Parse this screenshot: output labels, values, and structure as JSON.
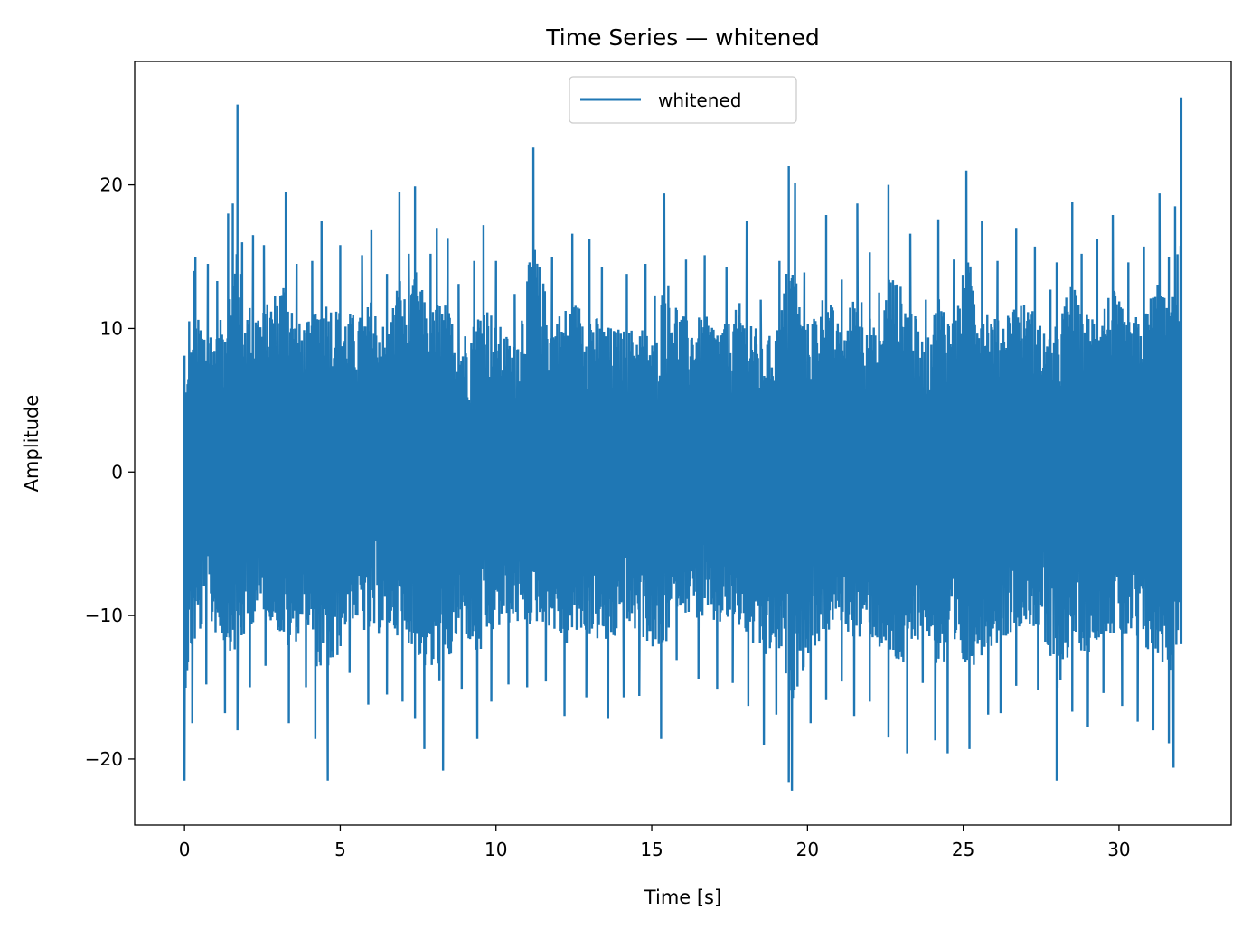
{
  "chart_data": {
    "type": "line",
    "title": "Time Series — whitened",
    "xlabel": "Time [s]",
    "ylabel": "Amplitude",
    "xlim": [
      -1.6,
      33.6
    ],
    "ylim": [
      -24.6,
      28.6
    ],
    "xticks": [
      0,
      5,
      10,
      15,
      20,
      25,
      30
    ],
    "xtick_labels": [
      "0",
      "5",
      "10",
      "15",
      "20",
      "25",
      "30"
    ],
    "yticks": [
      -20,
      -10,
      0,
      10,
      20
    ],
    "ytick_labels": [
      "−20",
      "−10",
      "0",
      "10",
      "20"
    ],
    "grid": false,
    "legend_position": "top-center",
    "series": [
      {
        "name": "whitened",
        "color": "#1f77b4",
        "x_start": 0,
        "x_end": 32,
        "peaks_max": [
          [
            0.0,
            8.1
          ],
          [
            0.15,
            10.5
          ],
          [
            0.3,
            14.0
          ],
          [
            0.35,
            15.0
          ],
          [
            0.75,
            14.5
          ],
          [
            1.05,
            13.3
          ],
          [
            1.4,
            18.0
          ],
          [
            1.55,
            18.7
          ],
          [
            1.7,
            25.6
          ],
          [
            1.85,
            16.0
          ],
          [
            2.2,
            16.5
          ],
          [
            2.55,
            15.8
          ],
          [
            3.25,
            19.5
          ],
          [
            3.6,
            14.5
          ],
          [
            4.1,
            14.7
          ],
          [
            4.4,
            17.5
          ],
          [
            5.0,
            15.8
          ],
          [
            5.7,
            15.1
          ],
          [
            6.0,
            16.9
          ],
          [
            6.5,
            13.8
          ],
          [
            6.9,
            19.5
          ],
          [
            7.2,
            15.2
          ],
          [
            7.4,
            19.9
          ],
          [
            7.9,
            15.2
          ],
          [
            8.1,
            17.0
          ],
          [
            8.45,
            16.3
          ],
          [
            8.8,
            13.1
          ],
          [
            9.3,
            14.7
          ],
          [
            9.6,
            17.2
          ],
          [
            10.0,
            14.7
          ],
          [
            10.6,
            12.4
          ],
          [
            11.2,
            22.6
          ],
          [
            11.8,
            15.0
          ],
          [
            12.45,
            16.6
          ],
          [
            13.0,
            16.2
          ],
          [
            13.4,
            14.3
          ],
          [
            14.2,
            13.8
          ],
          [
            14.8,
            14.5
          ],
          [
            15.1,
            12.3
          ],
          [
            15.4,
            19.4
          ],
          [
            16.1,
            14.8
          ],
          [
            16.7,
            15.1
          ],
          [
            17.4,
            14.3
          ],
          [
            18.05,
            17.5
          ],
          [
            18.5,
            12.0
          ],
          [
            19.1,
            14.7
          ],
          [
            19.4,
            21.3
          ],
          [
            19.6,
            20.1
          ],
          [
            19.9,
            13.9
          ],
          [
            20.6,
            17.9
          ],
          [
            21.1,
            13.4
          ],
          [
            21.6,
            18.7
          ],
          [
            22.0,
            15.3
          ],
          [
            22.3,
            12.5
          ],
          [
            22.6,
            20.0
          ],
          [
            23.3,
            16.6
          ],
          [
            23.8,
            12.0
          ],
          [
            24.2,
            17.6
          ],
          [
            24.7,
            14.8
          ],
          [
            25.1,
            21.0
          ],
          [
            25.6,
            17.5
          ],
          [
            26.1,
            14.7
          ],
          [
            26.7,
            17.0
          ],
          [
            27.3,
            15.7
          ],
          [
            27.8,
            12.7
          ],
          [
            28.0,
            14.6
          ],
          [
            28.5,
            18.8
          ],
          [
            28.8,
            15.2
          ],
          [
            29.3,
            16.2
          ],
          [
            29.8,
            17.9
          ],
          [
            30.3,
            14.6
          ],
          [
            30.8,
            15.7
          ],
          [
            31.3,
            19.4
          ],
          [
            31.6,
            15.0
          ],
          [
            31.8,
            18.5
          ],
          [
            32.0,
            26.1
          ]
        ],
        "peaks_min": [
          [
            0.0,
            -21.5
          ],
          [
            0.25,
            -17.5
          ],
          [
            0.7,
            -14.8
          ],
          [
            1.3,
            -16.8
          ],
          [
            1.7,
            -18.0
          ],
          [
            2.1,
            -15.0
          ],
          [
            2.6,
            -13.5
          ],
          [
            3.35,
            -17.5
          ],
          [
            3.9,
            -15.0
          ],
          [
            4.2,
            -18.6
          ],
          [
            4.6,
            -21.5
          ],
          [
            5.3,
            -14.0
          ],
          [
            5.9,
            -16.2
          ],
          [
            6.5,
            -15.5
          ],
          [
            7.0,
            -16.0
          ],
          [
            7.4,
            -17.2
          ],
          [
            7.7,
            -19.3
          ],
          [
            8.3,
            -20.8
          ],
          [
            8.9,
            -15.1
          ],
          [
            9.4,
            -18.6
          ],
          [
            9.85,
            -16.0
          ],
          [
            10.4,
            -14.8
          ],
          [
            11.0,
            -15.0
          ],
          [
            11.6,
            -14.6
          ],
          [
            12.2,
            -17.0
          ],
          [
            12.9,
            -15.7
          ],
          [
            13.6,
            -17.2
          ],
          [
            14.1,
            -15.7
          ],
          [
            14.6,
            -15.6
          ],
          [
            15.3,
            -18.6
          ],
          [
            15.8,
            -13.1
          ],
          [
            16.5,
            -14.4
          ],
          [
            17.1,
            -15.1
          ],
          [
            17.6,
            -14.7
          ],
          [
            18.1,
            -16.3
          ],
          [
            18.6,
            -19.0
          ],
          [
            19.0,
            -16.9
          ],
          [
            19.4,
            -21.6
          ],
          [
            19.5,
            -22.2
          ],
          [
            20.1,
            -17.5
          ],
          [
            20.6,
            -15.9
          ],
          [
            21.1,
            -14.6
          ],
          [
            21.5,
            -17.0
          ],
          [
            22.0,
            -16.0
          ],
          [
            22.6,
            -18.5
          ],
          [
            23.2,
            -19.6
          ],
          [
            23.7,
            -14.7
          ],
          [
            24.1,
            -18.7
          ],
          [
            24.5,
            -19.6
          ],
          [
            25.2,
            -19.3
          ],
          [
            25.8,
            -16.9
          ],
          [
            26.2,
            -16.8
          ],
          [
            26.7,
            -14.9
          ],
          [
            27.4,
            -15.2
          ],
          [
            28.0,
            -21.5
          ],
          [
            28.5,
            -16.7
          ],
          [
            29.0,
            -17.8
          ],
          [
            29.5,
            -15.4
          ],
          [
            30.1,
            -16.3
          ],
          [
            30.6,
            -17.4
          ],
          [
            31.1,
            -18.0
          ],
          [
            31.6,
            -18.9
          ],
          [
            31.75,
            -20.6
          ],
          [
            32.0,
            -12.0
          ]
        ]
      }
    ]
  }
}
